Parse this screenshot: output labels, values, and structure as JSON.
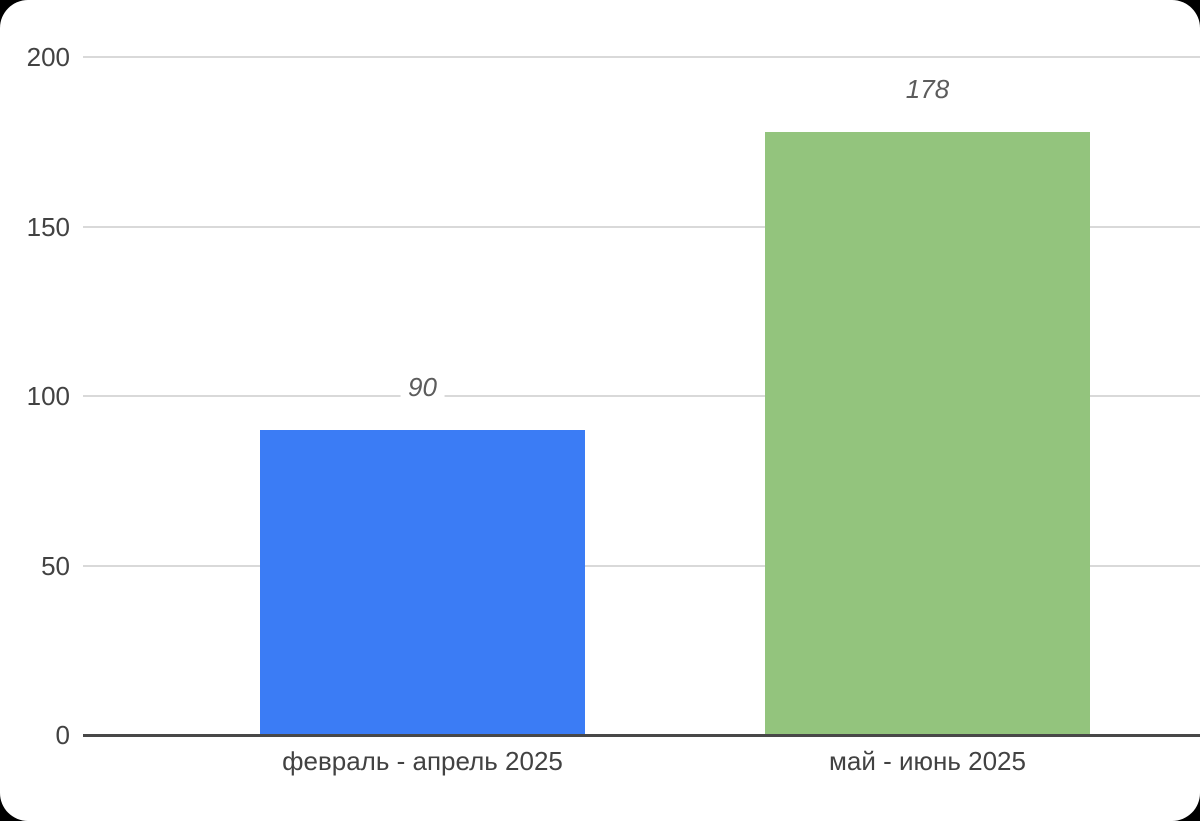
{
  "chart_data": {
    "type": "bar",
    "categories": [
      "февраль - апрель 2025",
      "май - июнь 2025"
    ],
    "values": [
      90,
      178
    ],
    "value_labels": [
      "90",
      "178"
    ],
    "bar_colors": [
      "#3b7cf5",
      "#93c47d"
    ],
    "title": "",
    "xlabel": "",
    "ylabel": "",
    "ylim": [
      0,
      200
    ],
    "yticks": [
      0,
      50,
      100,
      150,
      200
    ],
    "grid": "horizontal",
    "legend": "none"
  },
  "colors": {
    "page_background": "#000000",
    "card_background": "#ffffff",
    "gridline": "#d9d9d9",
    "axis_line": "#484848",
    "tick_label": "#424242",
    "category_label": "#424242",
    "value_label": "#5c5c5c"
  }
}
